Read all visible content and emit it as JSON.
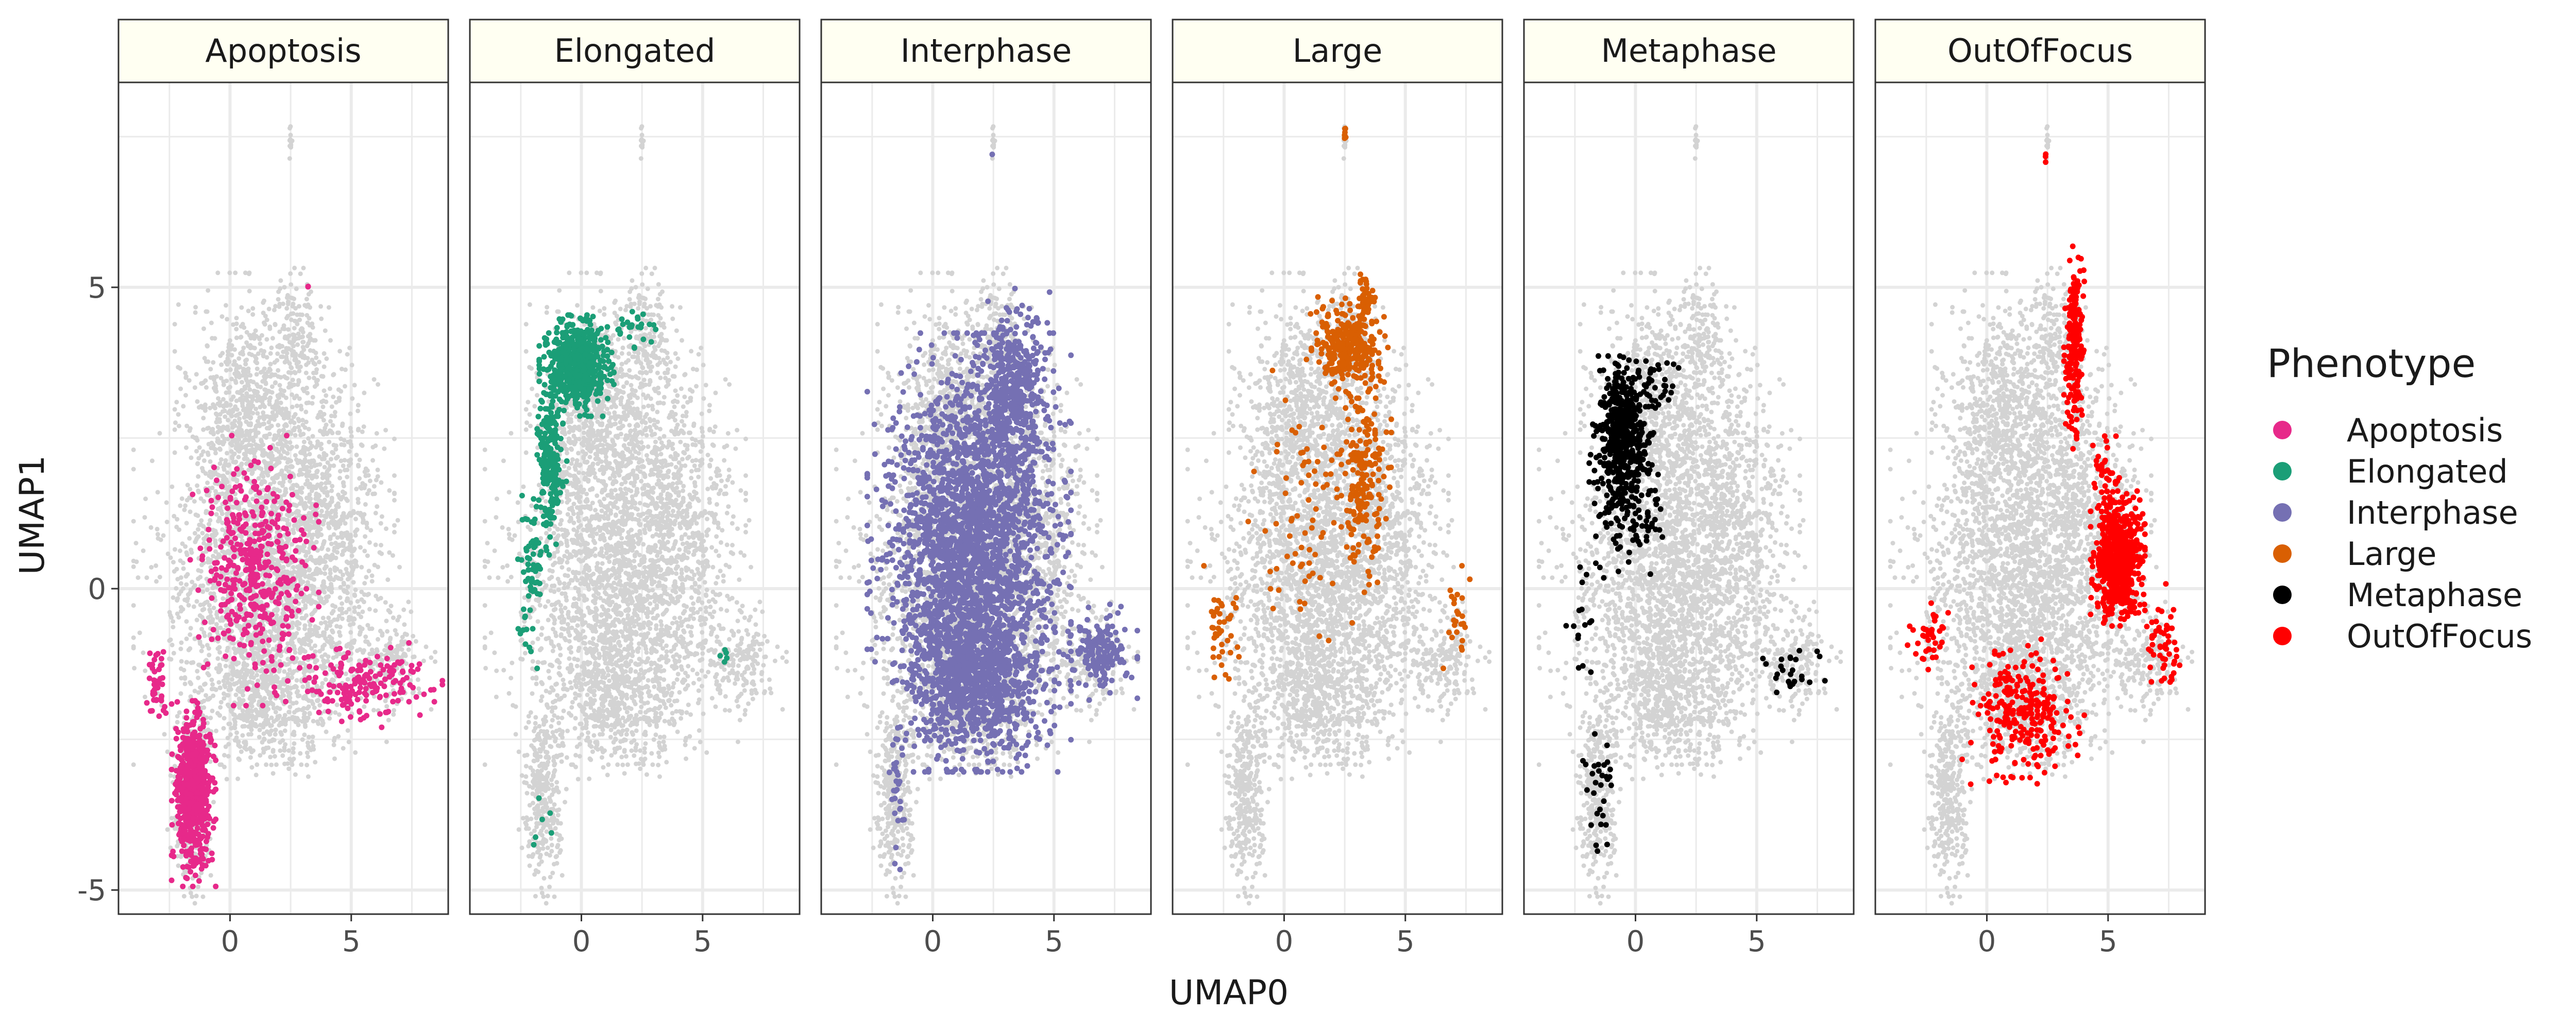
{
  "chart_data": {
    "type": "scatter",
    "xlabel": "UMAP0",
    "ylabel": "UMAP1",
    "xlim": [
      -4.6,
      9.0
    ],
    "ylim": [
      -5.4,
      8.4
    ],
    "x_ticks": [
      0,
      5
    ],
    "x_tick_labels": [
      "0",
      "5"
    ],
    "y_ticks": [
      -5,
      0,
      5
    ],
    "y_tick_labels": [
      "-5",
      "0",
      "5"
    ],
    "grid": true,
    "background_color": "#d3d3d3",
    "strip_fill": "#fffff2",
    "legend": {
      "title": "Phenotype",
      "position": "right",
      "entries": [
        {
          "label": "Apoptosis",
          "color": "#e7298a"
        },
        {
          "label": "Elongated",
          "color": "#1b9e77"
        },
        {
          "label": "Interphase",
          "color": "#7570b3"
        },
        {
          "label": "Large",
          "color": "#d95f02"
        },
        {
          "label": "Metaphase",
          "color": "#000000"
        },
        {
          "label": "OutOfFocus",
          "color": "#ff0000"
        }
      ]
    },
    "background_regions": [
      {
        "cx": 0.8,
        "cy": 3.0,
        "rx": 2.2,
        "ry": 1.6,
        "n": 700
      },
      {
        "cx": 3.7,
        "cy": 1.6,
        "rx": 2.2,
        "ry": 1.8,
        "n": 650
      },
      {
        "cx": 0.5,
        "cy": 0.3,
        "rx": 3.2,
        "ry": 2.3,
        "n": 1100
      },
      {
        "cx": 2.6,
        "cy": -0.4,
        "rx": 3.3,
        "ry": 1.8,
        "n": 900
      },
      {
        "cx": 1.5,
        "cy": -1.9,
        "rx": 2.4,
        "ry": 0.9,
        "n": 450
      },
      {
        "cx": 2.8,
        "cy": 4.2,
        "rx": 1.0,
        "ry": 0.8,
        "n": 150
      },
      {
        "cx": 6.5,
        "cy": -1.2,
        "rx": 1.4,
        "ry": 0.7,
        "n": 180
      },
      {
        "cx": -1.6,
        "cy": -3.4,
        "rx": 0.7,
        "ry": 1.3,
        "n": 320
      },
      {
        "cx": 2.5,
        "cy": 7.4,
        "rx": 0.05,
        "ry": 0.2,
        "n": 12
      }
    ],
    "panels": [
      {
        "label": "Apoptosis",
        "color": "#e7298a",
        "clusters": [
          {
            "cx": -1.5,
            "cy": -3.4,
            "rx": 0.65,
            "ry": 1.1,
            "n": 650
          },
          {
            "cx": 1.0,
            "cy": 0.3,
            "rx": 1.9,
            "ry": 1.6,
            "n": 420
          },
          {
            "cx": 5.4,
            "cy": -1.6,
            "rx": 2.4,
            "ry": 0.5,
            "n": 170
          },
          {
            "cx": -3.0,
            "cy": -1.6,
            "rx": 0.4,
            "ry": 0.6,
            "n": 40
          },
          {
            "cx": 3.2,
            "cy": 5.0,
            "rx": 0.1,
            "ry": 0.1,
            "n": 2
          }
        ]
      },
      {
        "label": "Elongated",
        "color": "#1b9e77",
        "clusters": [
          {
            "cx": -0.2,
            "cy": 3.7,
            "rx": 1.1,
            "ry": 0.6,
            "n": 600
          },
          {
            "cx": -1.3,
            "cy": 2.1,
            "rx": 0.5,
            "ry": 1.1,
            "n": 200
          },
          {
            "cx": -2.1,
            "cy": 0.2,
            "rx": 0.4,
            "ry": 1.1,
            "n": 60
          },
          {
            "cx": 2.2,
            "cy": 4.3,
            "rx": 0.8,
            "ry": 0.3,
            "n": 25
          },
          {
            "cx": 5.9,
            "cy": -1.1,
            "rx": 0.3,
            "ry": 0.3,
            "n": 5
          },
          {
            "cx": -1.6,
            "cy": -3.8,
            "rx": 0.5,
            "ry": 0.6,
            "n": 6
          }
        ]
      },
      {
        "label": "Interphase",
        "color": "#7570b3",
        "clusters": [
          {
            "cx": 1.5,
            "cy": 0.6,
            "rx": 3.0,
            "ry": 2.6,
            "n": 2600
          },
          {
            "cx": 3.3,
            "cy": 3.3,
            "rx": 1.2,
            "ry": 1.2,
            "n": 450
          },
          {
            "cx": 1.8,
            "cy": -1.6,
            "rx": 2.3,
            "ry": 1.0,
            "n": 700
          },
          {
            "cx": 6.9,
            "cy": -1.1,
            "rx": 1.1,
            "ry": 0.6,
            "n": 160
          },
          {
            "cx": -1.5,
            "cy": -3.4,
            "rx": 0.4,
            "ry": 0.9,
            "n": 30
          },
          {
            "cx": 2.5,
            "cy": 7.2,
            "rx": 0.05,
            "ry": 0.05,
            "n": 1
          }
        ]
      },
      {
        "label": "Large",
        "color": "#d95f02",
        "clusters": [
          {
            "cx": 2.6,
            "cy": 4.0,
            "rx": 1.2,
            "ry": 0.6,
            "n": 300
          },
          {
            "cx": 3.4,
            "cy": 4.8,
            "rx": 0.3,
            "ry": 0.4,
            "n": 40
          },
          {
            "cx": 3.3,
            "cy": 1.9,
            "rx": 0.8,
            "ry": 1.4,
            "n": 200
          },
          {
            "cx": 0.6,
            "cy": 1.0,
            "rx": 1.8,
            "ry": 1.9,
            "n": 70
          },
          {
            "cx": -2.5,
            "cy": -0.6,
            "rx": 0.6,
            "ry": 0.7,
            "n": 40
          },
          {
            "cx": 7.1,
            "cy": -0.6,
            "rx": 0.4,
            "ry": 0.7,
            "n": 25
          },
          {
            "cx": 2.5,
            "cy": 7.5,
            "rx": 0.05,
            "ry": 0.2,
            "n": 8
          }
        ]
      },
      {
        "label": "Metaphase",
        "color": "#000000",
        "clusters": [
          {
            "cx": -0.5,
            "cy": 2.6,
            "rx": 0.9,
            "ry": 0.9,
            "n": 500
          },
          {
            "cx": -0.3,
            "cy": 1.3,
            "rx": 1.4,
            "ry": 0.8,
            "n": 120
          },
          {
            "cx": 0.8,
            "cy": 3.5,
            "rx": 1.0,
            "ry": 0.4,
            "n": 30
          },
          {
            "cx": -2.3,
            "cy": -0.5,
            "rx": 0.4,
            "ry": 0.8,
            "n": 15
          },
          {
            "cx": 6.5,
            "cy": -1.4,
            "rx": 1.1,
            "ry": 0.4,
            "n": 25
          },
          {
            "cx": -1.5,
            "cy": -3.3,
            "rx": 0.5,
            "ry": 0.8,
            "n": 30
          }
        ]
      },
      {
        "label": "OutOfFocus",
        "color": "#ff0000",
        "clusters": [
          {
            "cx": 5.4,
            "cy": 0.5,
            "rx": 0.8,
            "ry": 0.8,
            "n": 650
          },
          {
            "cx": 3.6,
            "cy": 4.0,
            "rx": 0.3,
            "ry": 1.2,
            "n": 220
          },
          {
            "cx": 1.5,
            "cy": -2.1,
            "rx": 1.8,
            "ry": 0.9,
            "n": 260
          },
          {
            "cx": 7.3,
            "cy": -0.9,
            "rx": 0.6,
            "ry": 0.7,
            "n": 50
          },
          {
            "cx": -2.5,
            "cy": -0.8,
            "rx": 0.7,
            "ry": 0.4,
            "n": 40
          },
          {
            "cx": 4.9,
            "cy": 1.9,
            "rx": 0.5,
            "ry": 0.6,
            "n": 40
          },
          {
            "cx": 2.4,
            "cy": 7.2,
            "rx": 0.05,
            "ry": 0.1,
            "n": 3
          }
        ]
      }
    ]
  }
}
